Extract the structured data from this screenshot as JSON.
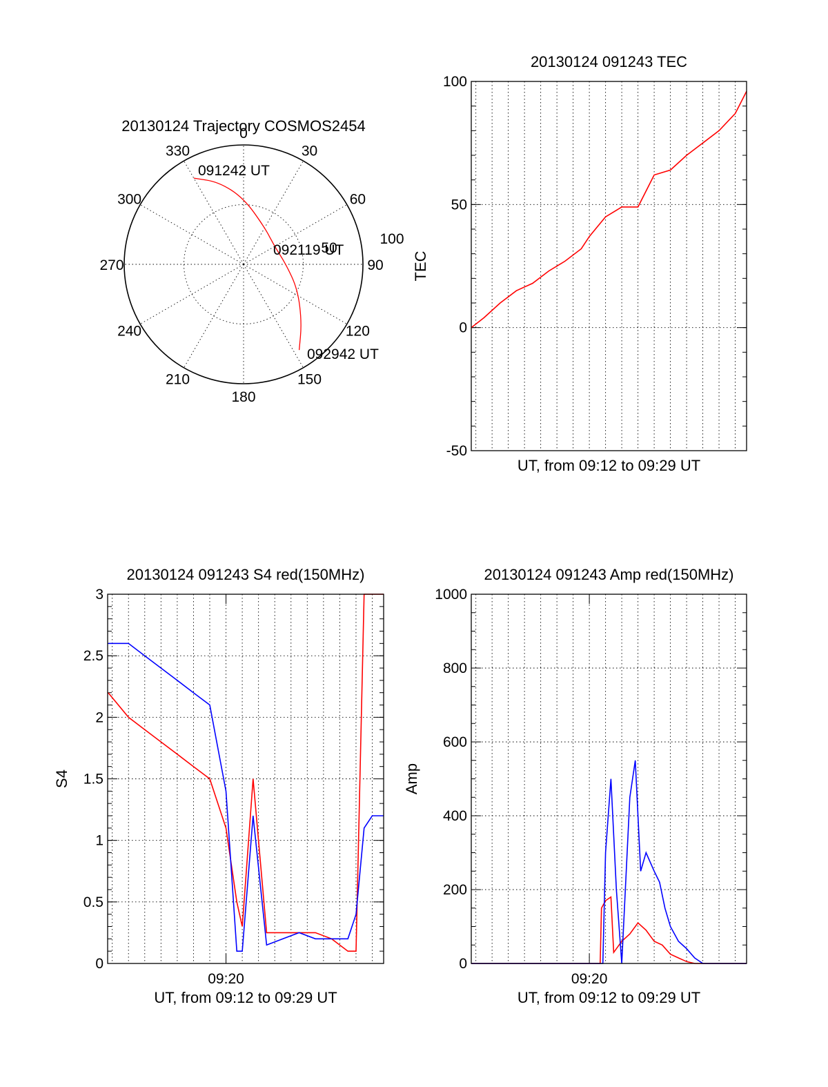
{
  "chart_data": [
    {
      "type": "polar",
      "title": "20130124 Trajectory COSMOS2454",
      "azimuth_labels": [
        "0",
        "30",
        "60",
        "90",
        "120",
        "150",
        "180",
        "210",
        "240",
        "270",
        "300",
        "330"
      ],
      "radius_labels": [
        "50",
        "100"
      ],
      "rlim": [
        0,
        100
      ],
      "grid": true,
      "color": "#ff0000",
      "trajectory": [
        {
          "az": 330,
          "el": 15
        },
        {
          "az": 343,
          "el": 25
        },
        {
          "az": 0,
          "el": 40
        },
        {
          "az": 30,
          "el": 58
        },
        {
          "az": 60,
          "el": 63
        },
        {
          "az": 90,
          "el": 58
        },
        {
          "az": 115,
          "el": 45
        },
        {
          "az": 135,
          "el": 28
        },
        {
          "az": 147,
          "el": 13
        }
      ],
      "annotations": [
        "091242 UT",
        "092119 UT",
        "092942 UT"
      ]
    },
    {
      "type": "line",
      "title": "20130124 091243 TEC",
      "xlabel": "UT, from 09:12 to 09:29 UT",
      "ylabel": "TEC",
      "ylim": [
        -50,
        100
      ],
      "yticks": [
        "-50",
        "0",
        "50",
        "100"
      ],
      "xlim": [
        "09:12:43",
        "09:29:42"
      ],
      "grid": true,
      "series": [
        {
          "color": "#ff0000",
          "x": [
            "09:12:43",
            "09:13:30",
            "09:14:30",
            "09:15:30",
            "09:16:30",
            "09:17:30",
            "09:18:30",
            "09:19:30",
            "09:20:00",
            "09:20:30",
            "09:21:00",
            "09:22:00",
            "09:23:00",
            "09:24:00",
            "09:25:00",
            "09:26:00",
            "09:27:00",
            "09:28:00",
            "09:29:00",
            "09:29:42"
          ],
          "values": [
            0,
            4,
            10,
            15,
            18,
            23,
            27,
            32,
            37,
            41,
            45,
            49,
            49,
            62,
            64,
            70,
            75,
            80,
            87,
            96
          ]
        }
      ]
    },
    {
      "type": "line",
      "title": "20130124 091243 S4 red(150MHz)",
      "xlabel": "UT, from 09:12 to 09:29 UT",
      "ylabel": "S4",
      "ylim": [
        0,
        3
      ],
      "yticks": [
        "0",
        "0.5",
        "1",
        "1.5",
        "2",
        "2.5",
        "3"
      ],
      "xticks": [
        "09:20"
      ],
      "xlim": [
        "09:12:43",
        "09:29:42"
      ],
      "grid": true,
      "series": [
        {
          "color": "#ff0000",
          "x": [
            "09:12:45",
            "09:14:00",
            "09:15:00",
            "09:16:00",
            "09:17:00",
            "09:18:00",
            "09:19:00",
            "09:20:00",
            "09:20:40",
            "09:21:00",
            "09:21:40",
            "09:22:30",
            "09:23:30",
            "09:24:30",
            "09:25:30",
            "09:26:30",
            "09:27:30",
            "09:28:00",
            "09:28:30",
            "09:29:00",
            "09:29:42"
          ],
          "values": [
            2.2,
            2.0,
            1.9,
            1.8,
            1.7,
            1.6,
            1.5,
            1.1,
            0.5,
            0.3,
            1.5,
            0.25,
            0.25,
            0.25,
            0.25,
            0.2,
            0.1,
            0.1,
            3.0,
            3.0,
            3.0
          ]
        },
        {
          "color": "#0000ff",
          "x": [
            "09:12:45",
            "09:14:00",
            "09:15:00",
            "09:16:00",
            "09:17:00",
            "09:18:00",
            "09:19:00",
            "09:20:00",
            "09:20:40",
            "09:21:00",
            "09:21:40",
            "09:22:30",
            "09:23:30",
            "09:24:30",
            "09:25:30",
            "09:26:30",
            "09:27:30",
            "09:28:00",
            "09:28:30",
            "09:29:00",
            "09:29:42"
          ],
          "values": [
            2.6,
            2.6,
            2.5,
            2.4,
            2.3,
            2.2,
            2.1,
            1.4,
            0.1,
            0.1,
            1.2,
            0.15,
            0.2,
            0.25,
            0.2,
            0.2,
            0.2,
            0.4,
            1.1,
            1.2,
            1.2
          ]
        }
      ]
    },
    {
      "type": "line",
      "title": "20130124 091243 Amp red(150MHz)",
      "xlabel": "UT, from 09:12 to 09:29 UT",
      "ylabel": "Amp",
      "ylim": [
        0,
        1000
      ],
      "yticks": [
        "0",
        "200",
        "400",
        "600",
        "800",
        "1000"
      ],
      "xticks": [
        "09:20"
      ],
      "xlim": [
        "09:12:43",
        "09:29:42"
      ],
      "grid": true,
      "series": [
        {
          "color": "#ff0000",
          "x": [
            "09:12:43",
            "09:20:40",
            "09:20:45",
            "09:21:00",
            "09:21:20",
            "09:21:30",
            "09:22:00",
            "09:22:30",
            "09:23:00",
            "09:23:30",
            "09:24:00",
            "09:24:30",
            "09:25:00",
            "09:25:30",
            "09:26:00",
            "09:26:30",
            "09:29:42"
          ],
          "values": [
            0,
            0,
            150,
            170,
            180,
            30,
            60,
            80,
            110,
            90,
            60,
            50,
            25,
            15,
            5,
            0,
            0
          ]
        },
        {
          "color": "#0000ff",
          "x": [
            "09:12:43",
            "09:20:50",
            "09:21:00",
            "09:21:20",
            "09:21:40",
            "09:22:00",
            "09:22:30",
            "09:22:50",
            "09:23:10",
            "09:23:30",
            "09:24:00",
            "09:24:20",
            "09:24:40",
            "09:25:00",
            "09:25:30",
            "09:26:00",
            "09:26:30",
            "09:27:00",
            "09:29:42"
          ],
          "values": [
            0,
            0,
            300,
            500,
            200,
            0,
            450,
            550,
            250,
            300,
            250,
            220,
            150,
            100,
            60,
            40,
            15,
            0,
            0
          ]
        }
      ]
    }
  ],
  "labels": {
    "p1": {
      "t330": "091242 UT",
      "t092": "092119 UT",
      "t092b": "092942 UT"
    }
  }
}
